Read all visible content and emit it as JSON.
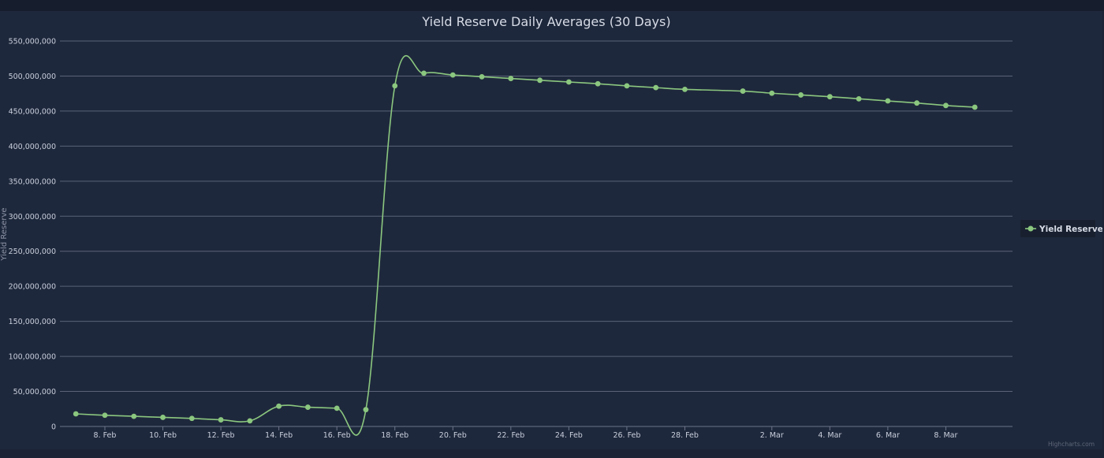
{
  "chart_data": {
    "type": "line",
    "title": "Yield Reserve Daily Averages (30 Days)",
    "ylabel": "Yield Reserve",
    "xlabel": "",
    "ylim": [
      0,
      550000000
    ],
    "yticks": [
      0,
      50000000,
      100000000,
      150000000,
      200000000,
      250000000,
      300000000,
      350000000,
      400000000,
      450000000,
      500000000,
      550000000
    ],
    "ytick_labels": [
      "0",
      "50,000,000",
      "100,000,000",
      "150,000,000",
      "200,000,000",
      "250,000,000",
      "300,000,000",
      "350,000,000",
      "400,000,000",
      "450,000,000",
      "500,000,000",
      "550,000,000"
    ],
    "xlim": [
      "7 Feb",
      "10 Mar"
    ],
    "xticks": [
      "8. Feb",
      "10. Feb",
      "12. Feb",
      "14. Feb",
      "16. Feb",
      "18. Feb",
      "20. Feb",
      "22. Feb",
      "24. Feb",
      "26. Feb",
      "28. Feb",
      "2. Mar",
      "4. Mar",
      "6. Mar",
      "8. Mar"
    ],
    "grid": true,
    "legend_position": "right",
    "color": "#8bc77f",
    "series": [
      {
        "name": "Yield Reserve",
        "x": [
          "7 Feb",
          "8 Feb",
          "9 Feb",
          "10 Feb",
          "11 Feb",
          "12 Feb",
          "13 Feb",
          "14 Feb",
          "15 Feb",
          "16 Feb",
          "17 Feb",
          "18 Feb",
          "19 Feb",
          "20 Feb",
          "21 Feb",
          "22 Feb",
          "23 Feb",
          "24 Feb",
          "25 Feb",
          "26 Feb",
          "27 Feb",
          "28 Feb",
          "1 Mar",
          "2 Mar",
          "3 Mar",
          "4 Mar",
          "5 Mar",
          "6 Mar",
          "7 Mar",
          "8 Mar",
          "9 Mar"
        ],
        "values": [
          18000000,
          16000000,
          14500000,
          13000000,
          11500000,
          9500000,
          8000000,
          29000000,
          27500000,
          26000000,
          24000000,
          486000000,
          504000000,
          501500000,
          499000000,
          496500000,
          494000000,
          491500000,
          489000000,
          486000000,
          483500000,
          481000000,
          478500000,
          475500000,
          473000000,
          470500000,
          467500000,
          464500000,
          461500000,
          458000000,
          455500000
        ]
      }
    ],
    "credits": "Highcharts.com"
  }
}
